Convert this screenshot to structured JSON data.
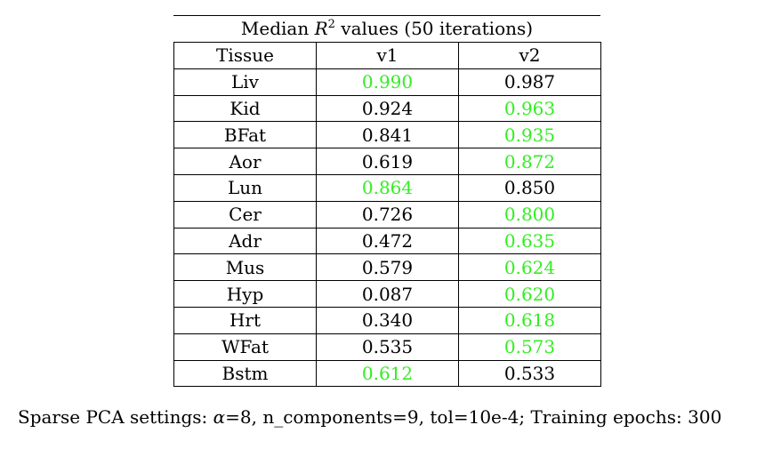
{
  "table": {
    "caption_prefix": "Median ",
    "caption_symbol": "R",
    "caption_exponent": "2",
    "caption_suffix": " values (50 iterations)",
    "headers": [
      "Tissue",
      "v1",
      "v2"
    ],
    "highlight_color": "#33ee22",
    "rows": [
      {
        "tissue": "Liv",
        "v1": "0.990",
        "v2": "0.987",
        "best": "v1"
      },
      {
        "tissue": "Kid",
        "v1": "0.924",
        "v2": "0.963",
        "best": "v2"
      },
      {
        "tissue": "BFat",
        "v1": "0.841",
        "v2": "0.935",
        "best": "v2"
      },
      {
        "tissue": "Aor",
        "v1": "0.619",
        "v2": "0.872",
        "best": "v2"
      },
      {
        "tissue": "Lun",
        "v1": "0.864",
        "v2": "0.850",
        "best": "v1"
      },
      {
        "tissue": "Cer",
        "v1": "0.726",
        "v2": "0.800",
        "best": "v2"
      },
      {
        "tissue": "Adr",
        "v1": "0.472",
        "v2": "0.635",
        "best": "v2"
      },
      {
        "tissue": "Mus",
        "v1": "0.579",
        "v2": "0.624",
        "best": "v2"
      },
      {
        "tissue": "Hyp",
        "v1": "0.087",
        "v2": "0.620",
        "best": "v2"
      },
      {
        "tissue": "Hrt",
        "v1": "0.340",
        "v2": "0.618",
        "best": "v2"
      },
      {
        "tissue": "WFat",
        "v1": "0.535",
        "v2": "0.573",
        "best": "v2"
      },
      {
        "tissue": "Bstm",
        "v1": "0.612",
        "v2": "0.533",
        "best": "v1"
      }
    ]
  },
  "footnote": {
    "prefix": "Sparse PCA settings: ",
    "alpha_symbol": "α",
    "suffix": "=8, n_components=9, tol=10e-4; Training epochs: 300"
  }
}
